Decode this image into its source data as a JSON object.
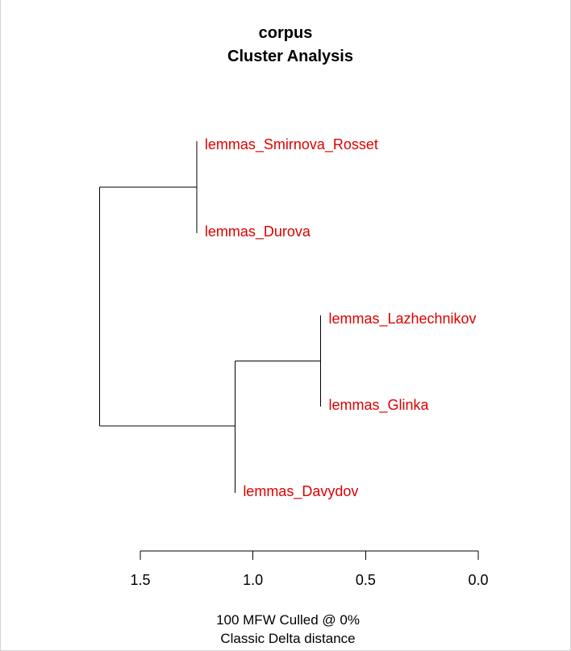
{
  "chart_data": {
    "type": "dendrogram",
    "title": "corpus",
    "subtitle": "Cluster Analysis",
    "caption_line1": "100 MFW  Culled @ 0%",
    "caption_line2": "Classic Delta distance",
    "x_ticks": [
      "1.5",
      "1.0",
      "0.5",
      "0.0"
    ],
    "x_tick_values": [
      1.5,
      1.0,
      0.5,
      0.0
    ],
    "xlim": [
      1.5,
      0.0
    ],
    "label_color": "#dd0000",
    "line_color": "#000000",
    "leaves": [
      {
        "label": "lemmas_Smirnova_Rosset",
        "height": 1.25
      },
      {
        "label": "lemmas_Durova",
        "height": 1.25
      },
      {
        "label": "lemmas_Lazhechnikov",
        "height": 0.7
      },
      {
        "label": "lemmas_Glinka",
        "height": 0.7
      },
      {
        "label": "lemmas_Davydov",
        "height": 1.08
      }
    ],
    "merges": [
      {
        "children": [
          "lemmas_Smirnova_Rosset",
          "lemmas_Durova"
        ],
        "height": 1.25
      },
      {
        "children": [
          "lemmas_Lazhechnikov",
          "lemmas_Glinka"
        ],
        "height": 0.7
      },
      {
        "children": [
          "lemmas_Lazhechnikov+lemmas_Glinka",
          "lemmas_Davydov"
        ],
        "height": 1.08
      },
      {
        "children": [
          "lemmas_Smirnova_Rosset+lemmas_Durova",
          "lemmas_Lazhechnikov+lemmas_Glinka+lemmas_Davydov"
        ],
        "height": 1.68
      }
    ]
  }
}
